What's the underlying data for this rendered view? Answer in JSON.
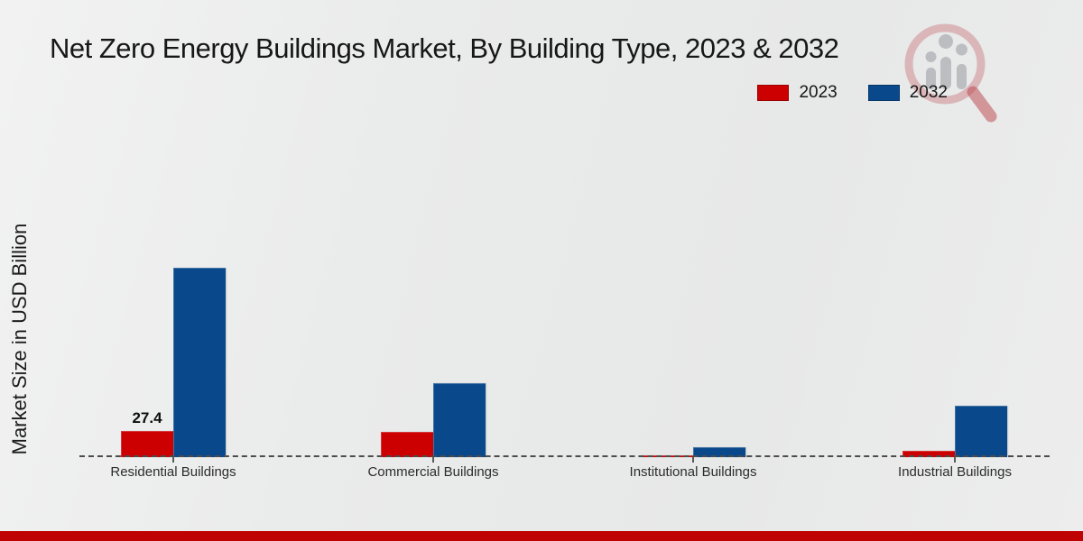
{
  "page": {
    "footer_bar_color": "#bf0303"
  },
  "icons": {
    "watermark": "magnifier-bar-chart-logo"
  },
  "chart_data": {
    "type": "bar",
    "title": "Net Zero Energy Buildings Market, By Building Type, 2023 & 2032",
    "xlabel": "",
    "ylabel": "Market Size in USD Billion",
    "categories": [
      "Residential Buildings",
      "Commercial Buildings",
      "Institutional Buildings",
      "Industrial Buildings"
    ],
    "series": [
      {
        "name": "2023",
        "color": "#cc0001",
        "values": [
          27.4,
          26.4,
          2.3,
          6.7
        ]
      },
      {
        "name": "2032",
        "color": "#09498b",
        "values": [
          195,
          76,
          10,
          53
        ]
      }
    ],
    "ylim": [
      0,
      200
    ],
    "grid": false,
    "legend_position": "top-right",
    "baseline_style": "dashed",
    "annotations": [
      {
        "text": "27.4",
        "series_index": 0,
        "category_index": 0
      }
    ]
  }
}
